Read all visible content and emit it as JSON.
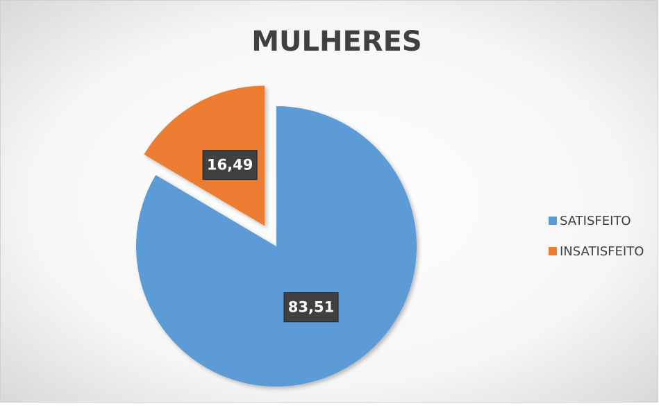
{
  "chart_data": {
    "type": "pie",
    "title": "MULHERES",
    "categories": [
      "SATISFEITO",
      "INSATISFEITO"
    ],
    "values": [
      83.51,
      16.49
    ],
    "value_labels": [
      "83,51",
      "16,49"
    ],
    "colors": [
      "#5b9bd5",
      "#ed7d31"
    ],
    "legend": "right"
  }
}
